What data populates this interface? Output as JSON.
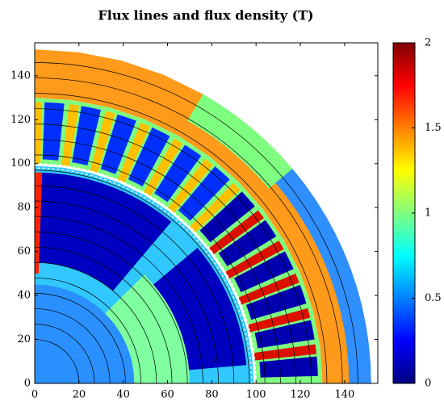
{
  "chart_data": {
    "type": "heatmap",
    "title": "Flux lines and flux density (T)",
    "xlim": [
      0,
      155
    ],
    "ylim": [
      0,
      155
    ],
    "xticks": [
      0,
      20,
      40,
      60,
      80,
      100,
      120,
      140
    ],
    "yticks": [
      0,
      20,
      40,
      60,
      80,
      100,
      120,
      140
    ],
    "colorbar": {
      "clim": [
        0,
        2
      ],
      "ticks": [
        0,
        0.5,
        1,
        1.5,
        2
      ]
    }
  }
}
